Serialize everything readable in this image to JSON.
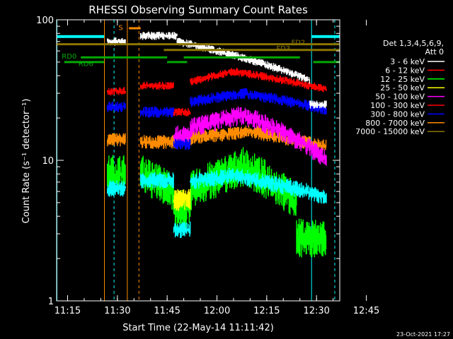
{
  "chart_data": {
    "type": "line",
    "title": "RHESSI Observing Summary Count Rates",
    "xlabel": "Start Time (22-May-14 11:11:42)",
    "ylabel": "Count Rate (s⁻¹ detector⁻¹)",
    "yscale": "log",
    "ylim": [
      1,
      100
    ],
    "xlim_minutes": [
      11.7,
      97.0
    ],
    "xticks": [
      {
        "label": "11:15",
        "min": 15
      },
      {
        "label": "11:30",
        "min": 30
      },
      {
        "label": "11:45",
        "min": 45
      },
      {
        "label": "12:00",
        "min": 60
      },
      {
        "label": "12:15",
        "min": 75
      },
      {
        "label": "12:30",
        "min": 90
      },
      {
        "label": "12:45",
        "min": 105
      }
    ],
    "yticks": [
      {
        "label": "1",
        "value": 1
      },
      {
        "label": "10",
        "value": 10
      },
      {
        "label": "100",
        "value": 100
      }
    ],
    "legend_header": [
      "Det 1,3,4,5,6,9,",
      "Att 0"
    ],
    "series": [
      {
        "name": "3 - 6 keV",
        "color": "#ffffff"
      },
      {
        "name": "6 - 12 keV",
        "color": "#ff0000"
      },
      {
        "name": "12 - 25 keV",
        "color": "#00ff00"
      },
      {
        "name": "25 - 50 keV",
        "color": "#ffff00"
      },
      {
        "name": "50 - 100 keV",
        "color": "#ff00ff"
      },
      {
        "name": "100 - 300 keV",
        "color": "#ff0000"
      },
      {
        "name": "300 - 800 keV",
        "color": "#0000ff"
      },
      {
        "name": "800 - 7000 keV",
        "color": "#ff8c00"
      },
      {
        "name": "7000 - 15000 keV",
        "color": "#8b7500"
      }
    ],
    "annotations": [
      {
        "label": "S",
        "color": "#ff8c00"
      },
      {
        "label": "FD2",
        "color": "#8b7500"
      },
      {
        "label": "FD3",
        "color": "#8b7500"
      },
      {
        "label": "RD0",
        "color": "#00aa00"
      },
      {
        "label": "RD6",
        "color": "#00aa00"
      }
    ],
    "footer_date": "23-Oct-2021 17:27"
  }
}
